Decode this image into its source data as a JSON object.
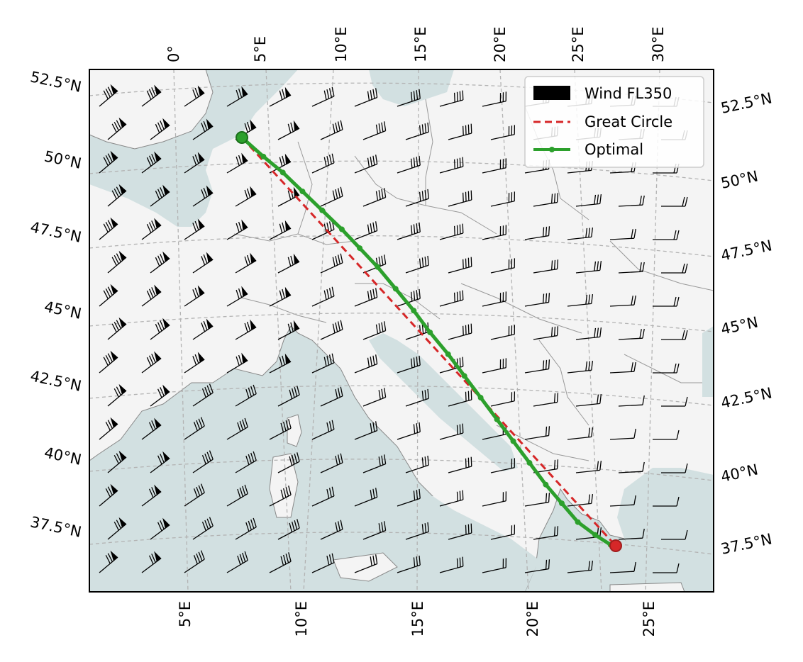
{
  "chart_data": {
    "type": "map",
    "projection": "lambert-conformal",
    "extent_lon": [
      1,
      28
    ],
    "extent_lat": [
      36,
      53
    ],
    "gridlines": true,
    "legend_position": "top-right",
    "legend": [
      {
        "label": "Wind FL350",
        "color": "#000000",
        "symbol": "patch"
      },
      {
        "label": "Great Circle",
        "color": "#d62728",
        "symbol": "dashed-line"
      },
      {
        "label": "Optimal",
        "color": "#2ca02c",
        "symbol": "line-with-dots"
      }
    ],
    "top_lon_ticks": [
      "0°",
      "5°E",
      "10°E",
      "15°E",
      "20°E",
      "25°E",
      "30°E"
    ],
    "bottom_lon_ticks": [
      "5°E",
      "10°E",
      "15°E",
      "20°E",
      "25°E"
    ],
    "left_lat_ticks": [
      "52.5°N",
      "50°N",
      "47.5°N",
      "45°N",
      "42.5°N",
      "40°N",
      "37.5°N"
    ],
    "right_lat_ticks": [
      "52.5°N",
      "50°N",
      "47.5°N",
      "45°N",
      "42.5°N",
      "40°N",
      "37.5°N"
    ],
    "route_start": {
      "lon": 4.5,
      "lat": 50.9
    },
    "route_end": {
      "lon": 23.7,
      "lat": 37.9
    },
    "great_circle": [
      [
        4.5,
        50.9
      ],
      [
        23.7,
        37.9
      ]
    ],
    "optimal_route": [
      [
        4.5,
        50.9
      ],
      [
        5.6,
        50.3
      ],
      [
        6.6,
        49.8
      ],
      [
        7.6,
        49.2
      ],
      [
        8.6,
        48.6
      ],
      [
        9.6,
        48.0
      ],
      [
        10.5,
        47.4
      ],
      [
        11.4,
        46.8
      ],
      [
        12.3,
        46.1
      ],
      [
        13.2,
        45.4
      ],
      [
        14.0,
        44.7
      ],
      [
        14.9,
        44.0
      ],
      [
        15.7,
        43.3
      ],
      [
        16.5,
        42.6
      ],
      [
        17.3,
        41.9
      ],
      [
        18.1,
        41.2
      ],
      [
        18.9,
        40.5
      ],
      [
        19.7,
        39.8
      ],
      [
        20.5,
        39.2
      ],
      [
        21.3,
        38.6
      ],
      [
        22.2,
        38.2
      ],
      [
        23.0,
        37.9
      ],
      [
        23.7,
        37.9
      ]
    ],
    "wind_field": "barbs on a regular grid, westerly 50-100 kt flow over western Europe turning to light southwesterlies over the Balkans"
  }
}
